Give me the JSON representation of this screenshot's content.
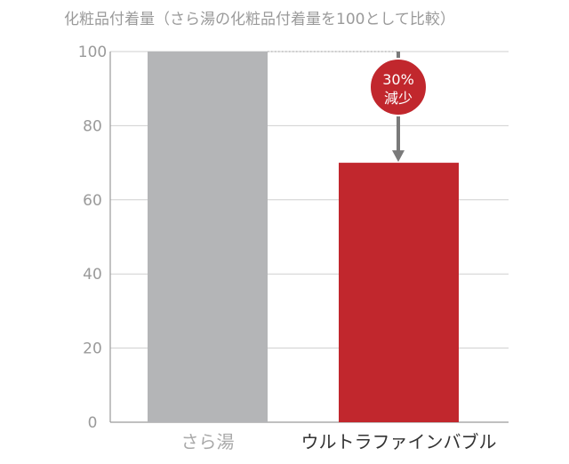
{
  "chart_data": {
    "type": "bar",
    "title": "化粧品付着量（さら湯の化粧品付着量を100として比較）",
    "categories": [
      "さら湯",
      "ウルトラファインバブル"
    ],
    "values": [
      100,
      70
    ],
    "ylim": [
      0,
      100
    ],
    "yticks": [
      "0",
      "20",
      "40",
      "60",
      "80",
      "100"
    ],
    "grid": true,
    "annotation": {
      "line1": "30%",
      "line2": "減少"
    },
    "colors": {
      "bar_1": "#b4b5b7",
      "bar_2": "#c1272d",
      "category_1": "#a9a9a9",
      "category_2": "#333333",
      "badge": "#c1272d",
      "arrow": "#7a7a7a",
      "grid": "#cfcfcf",
      "text": "#9a9a9a"
    }
  }
}
